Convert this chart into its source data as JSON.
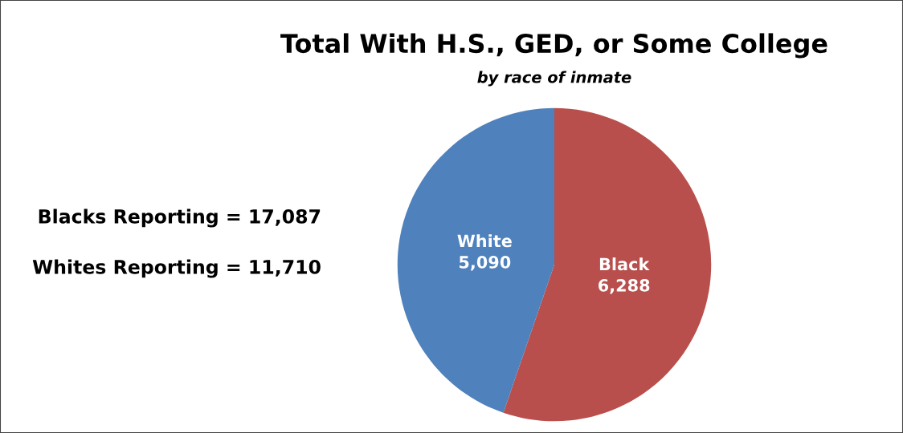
{
  "chart_data": {
    "type": "pie",
    "title": "Total With H.S., GED, or Some College",
    "subtitle": "by race of inmate",
    "categories": [
      "Black",
      "White"
    ],
    "values": [
      6288,
      5090
    ],
    "colors": [
      "#b84f4c",
      "#4f81bd"
    ],
    "value_labels": [
      "6,288",
      "5,090"
    ],
    "annotations": [
      "Blacks Reporting = 17,087",
      "Whites Reporting = 11,710"
    ]
  }
}
